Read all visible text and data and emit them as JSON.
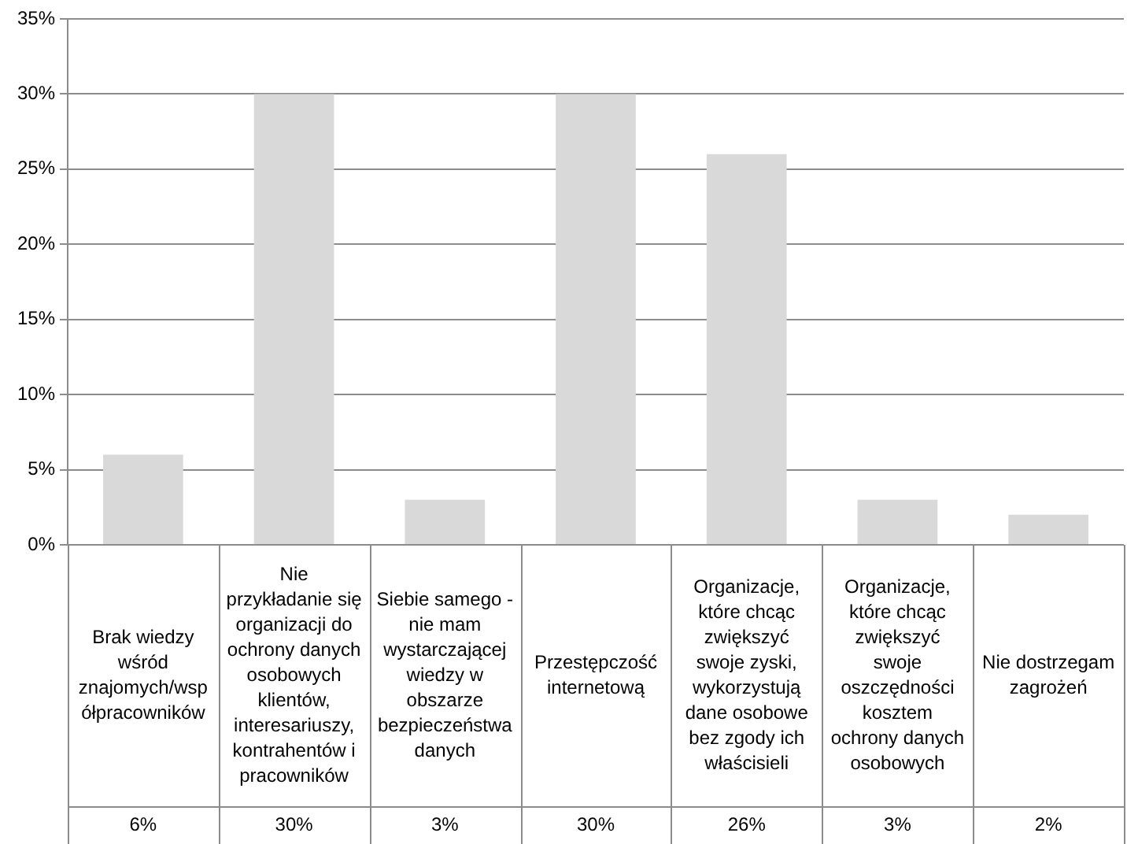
{
  "chart_data": {
    "type": "bar",
    "categories": [
      "Brak wiedzy wśród znajomych/współpracowników",
      "Nie przykładanie się organizacji do ochrony danych osobowych klientów, interesariuszy, kontrahentów i pracowników",
      "Siebie samego - nie mam wystarczającej wiedzy w obszarze bezpieczeństwa danych",
      "Przestępczość internetową",
      "Organizacje, które chcąc zwiększyć swoje zyski, wykorzystują dane osobowe bez zgody ich właścisieli",
      "Organizacje, które chcąc zwiększyć swoje oszczędności kosztem ochrony danych osobowych",
      "Nie dostrzegam zagrożeń"
    ],
    "values": [
      6,
      30,
      3,
      30,
      26,
      3,
      2
    ],
    "value_labels": [
      "6%",
      "30%",
      "3%",
      "30%",
      "26%",
      "3%",
      "2%"
    ],
    "color": "#d9d9d9",
    "ylim": [
      0,
      35
    ],
    "yticks": [
      {
        "value": 0,
        "label": "0%"
      },
      {
        "value": 5,
        "label": "5%"
      },
      {
        "value": 10,
        "label": "10%"
      },
      {
        "value": 15,
        "label": "15%"
      },
      {
        "value": 20,
        "label": "20%"
      },
      {
        "value": 25,
        "label": "25%"
      },
      {
        "value": 30,
        "label": "30%"
      },
      {
        "value": 35,
        "label": "35%"
      }
    ],
    "grid": "y"
  }
}
